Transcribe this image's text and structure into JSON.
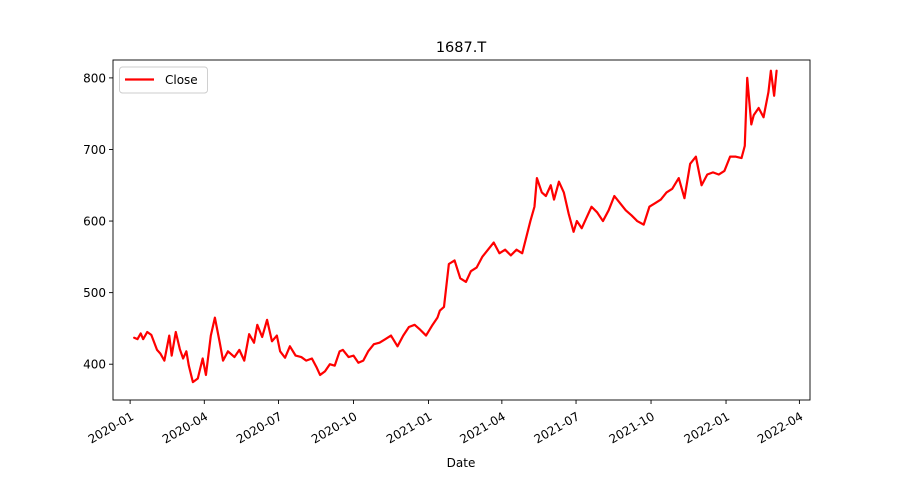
{
  "chart_data": {
    "type": "line",
    "title": "1687.T",
    "xlabel": "Date",
    "ylabel": "",
    "xlim": [
      "2019-12-11",
      "2022-04-14"
    ],
    "ylim": [
      350,
      825
    ],
    "yticks": [
      400,
      500,
      600,
      700,
      800
    ],
    "xticks": [
      "2020-01",
      "2020-04",
      "2020-07",
      "2020-10",
      "2021-01",
      "2021-04",
      "2021-07",
      "2021-10",
      "2022-01",
      "2022-04"
    ],
    "grid": false,
    "legend": {
      "position": "top-left",
      "entries": [
        "Close"
      ]
    },
    "colors": {
      "Close": "#ff0000"
    },
    "series": [
      {
        "name": "Close",
        "x": [
          "2020-01-06",
          "2020-01-10",
          "2020-01-14",
          "2020-01-17",
          "2020-01-22",
          "2020-01-27",
          "2020-02-03",
          "2020-02-07",
          "2020-02-12",
          "2020-02-18",
          "2020-02-21",
          "2020-02-26",
          "2020-03-02",
          "2020-03-06",
          "2020-03-10",
          "2020-03-13",
          "2020-03-18",
          "2020-03-24",
          "2020-03-30",
          "2020-04-03",
          "2020-04-09",
          "2020-04-14",
          "2020-04-20",
          "2020-04-24",
          "2020-04-30",
          "2020-05-08",
          "2020-05-14",
          "2020-05-20",
          "2020-05-26",
          "2020-06-01",
          "2020-06-05",
          "2020-06-11",
          "2020-06-17",
          "2020-06-23",
          "2020-06-29",
          "2020-07-03",
          "2020-07-09",
          "2020-07-15",
          "2020-07-22",
          "2020-07-29",
          "2020-08-04",
          "2020-08-11",
          "2020-08-17",
          "2020-08-21",
          "2020-08-27",
          "2020-09-02",
          "2020-09-08",
          "2020-09-14",
          "2020-09-18",
          "2020-09-25",
          "2020-10-01",
          "2020-10-07",
          "2020-10-13",
          "2020-10-19",
          "2020-10-26",
          "2020-11-02",
          "2020-11-09",
          "2020-11-16",
          "2020-11-24",
          "2020-12-01",
          "2020-12-08",
          "2020-12-15",
          "2020-12-22",
          "2020-12-29",
          "2021-01-06",
          "2021-01-12",
          "2021-01-15",
          "2021-01-20",
          "2021-01-26",
          "2021-02-02",
          "2021-02-09",
          "2021-02-16",
          "2021-02-22",
          "2021-03-01",
          "2021-03-08",
          "2021-03-15",
          "2021-03-22",
          "2021-03-29",
          "2021-04-05",
          "2021-04-12",
          "2021-04-19",
          "2021-04-26",
          "2021-05-06",
          "2021-05-11",
          "2021-05-14",
          "2021-05-20",
          "2021-05-25",
          "2021-05-31",
          "2021-06-04",
          "2021-06-10",
          "2021-06-16",
          "2021-06-22",
          "2021-06-28",
          "2021-07-02",
          "2021-07-08",
          "2021-07-14",
          "2021-07-20",
          "2021-07-27",
          "2021-08-03",
          "2021-08-10",
          "2021-08-17",
          "2021-08-24",
          "2021-08-31",
          "2021-09-07",
          "2021-09-14",
          "2021-09-22",
          "2021-09-29",
          "2021-10-06",
          "2021-10-13",
          "2021-10-20",
          "2021-10-27",
          "2021-11-04",
          "2021-11-11",
          "2021-11-18",
          "2021-11-25",
          "2021-12-02",
          "2021-12-09",
          "2021-12-16",
          "2021-12-23",
          "2021-12-30",
          "2022-01-06",
          "2022-01-13",
          "2022-01-20",
          "2022-01-24",
          "2022-01-27",
          "2022-02-01",
          "2022-02-04",
          "2022-02-10",
          "2022-02-16",
          "2022-02-22",
          "2022-02-25",
          "2022-03-01",
          "2022-03-04"
        ],
        "y": [
          437,
          435,
          443,
          435,
          445,
          441,
          420,
          415,
          405,
          440,
          412,
          445,
          421,
          408,
          418,
          398,
          375,
          380,
          408,
          385,
          440,
          465,
          430,
          405,
          418,
          410,
          420,
          405,
          442,
          430,
          455,
          438,
          462,
          432,
          440,
          418,
          409,
          425,
          412,
          410,
          405,
          408,
          395,
          385,
          390,
          400,
          398,
          418,
          420,
          410,
          412,
          402,
          405,
          418,
          428,
          430,
          435,
          440,
          425,
          440,
          452,
          455,
          448,
          440,
          455,
          465,
          475,
          480,
          540,
          545,
          520,
          515,
          530,
          535,
          550,
          560,
          570,
          555,
          560,
          552,
          560,
          555,
          600,
          620,
          660,
          640,
          635,
          650,
          630,
          655,
          640,
          610,
          585,
          600,
          590,
          605,
          620,
          612,
          600,
          615,
          635,
          625,
          615,
          608,
          600,
          595,
          620,
          625,
          630,
          640,
          645,
          660,
          632,
          680,
          690,
          650,
          665,
          668,
          665,
          670,
          690,
          690,
          688,
          705,
          800,
          735,
          748,
          758,
          745,
          780,
          810,
          775,
          810
        ]
      }
    ]
  }
}
